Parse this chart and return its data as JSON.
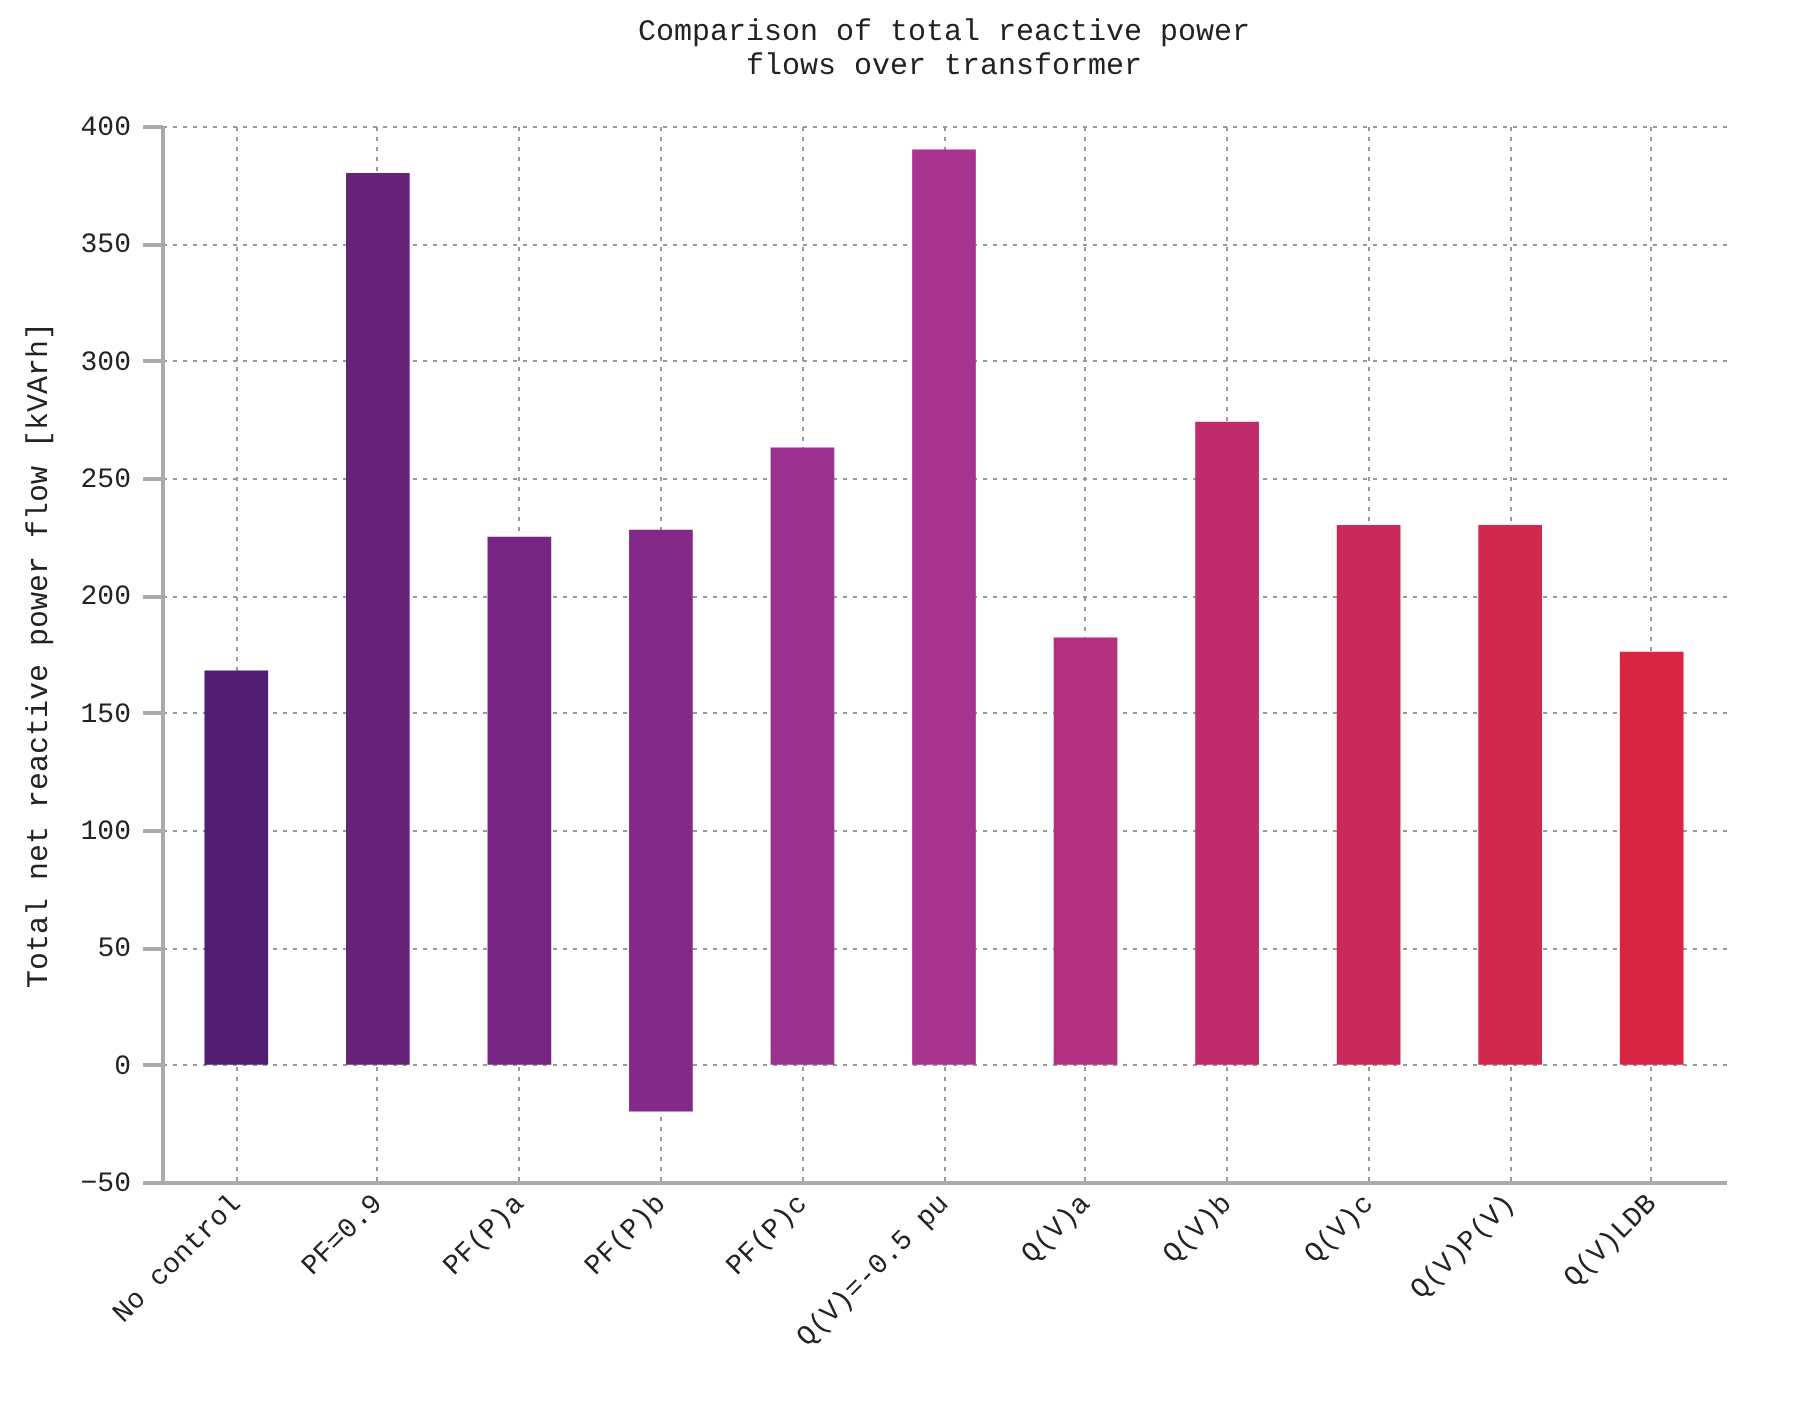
{
  "chart_data": {
    "type": "bar",
    "title": "Comparison of total reactive power\nflows over transformer",
    "ylabel": "Total net reactive power flow [kVArh]",
    "categories": [
      "No control",
      "PF=0.9",
      "PF(P)a",
      "PF(P)b",
      "PF(P)c",
      "Q(V)=-0.5 pu",
      "Q(V)a",
      "Q(V)b",
      "Q(V)c",
      "Q(V)P(V)",
      "Q(V)LDB"
    ],
    "values": [
      168,
      380,
      225,
      248,
      263,
      390,
      182,
      274,
      230,
      230,
      176
    ],
    "base": [
      0,
      0,
      0,
      -20,
      0,
      0,
      0,
      0,
      0,
      0,
      0
    ],
    "colors": [
      "#511e72",
      "#672379",
      "#742680",
      "#832a88",
      "#9c3290",
      "#a8338f",
      "#b3307e",
      "#c02a6a",
      "#c92a5c",
      "#d2284d",
      "#da2443"
    ],
    "ylim": [
      -50,
      400
    ],
    "yticks": [
      -50,
      0,
      50,
      100,
      150,
      200,
      250,
      300,
      350,
      400
    ],
    "grid": true
  }
}
